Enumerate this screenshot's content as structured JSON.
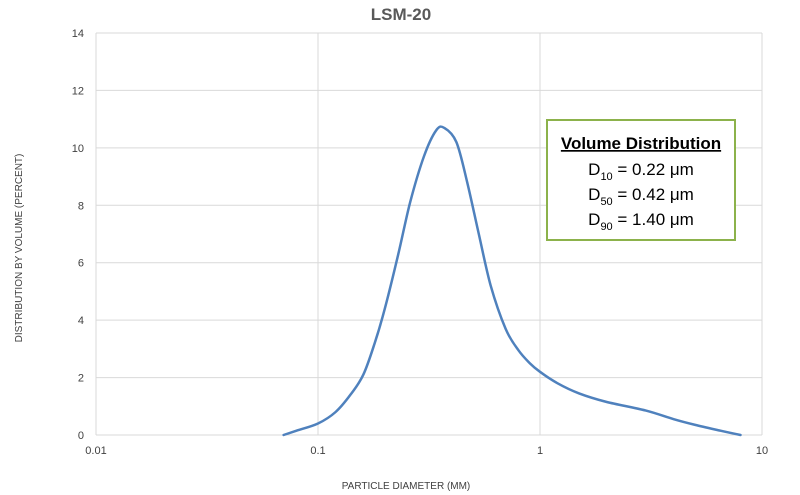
{
  "chart_data": {
    "type": "line",
    "title": "LSM-20",
    "xlabel": "PARTICLE DIAMETER (MM)",
    "ylabel": "DISTRIBUTION BY VOLUME (PERCENT)",
    "xscale": "log",
    "xlim": [
      0.01,
      10
    ],
    "ylim": [
      0,
      14
    ],
    "xticks": [
      "0.01",
      "0.1",
      "1",
      "10"
    ],
    "yticks": [
      "0",
      "2",
      "4",
      "6",
      "8",
      "10",
      "12",
      "14"
    ],
    "grid": true,
    "series": [
      {
        "color": "#4f81bd",
        "x": [
          0.07,
          0.08,
          0.1,
          0.12,
          0.14,
          0.16,
          0.18,
          0.2,
          0.23,
          0.26,
          0.3,
          0.34,
          0.37,
          0.42,
          0.47,
          0.53,
          0.6,
          0.7,
          0.8,
          0.9,
          1.0,
          1.2,
          1.5,
          2.0,
          3.0,
          4.0,
          5.0,
          6.5,
          8.0
        ],
        "values": [
          0.0,
          0.15,
          0.4,
          0.8,
          1.4,
          2.1,
          3.2,
          4.4,
          6.3,
          8.1,
          9.7,
          10.6,
          10.7,
          10.2,
          8.8,
          7.0,
          5.2,
          3.7,
          2.95,
          2.5,
          2.2,
          1.8,
          1.45,
          1.15,
          0.85,
          0.55,
          0.35,
          0.15,
          0.0
        ]
      }
    ],
    "annotation": {
      "heading": "Volume Distribution",
      "lines": [
        {
          "main": "D",
          "sub": "10",
          "text": " = 0.22 μm"
        },
        {
          "main": "D",
          "sub": "50",
          "text": " = 0.42 μm"
        },
        {
          "main": "D",
          "sub": "90",
          "text": " = 1.40 μm"
        }
      ],
      "border_color": "#8cb24b"
    }
  }
}
